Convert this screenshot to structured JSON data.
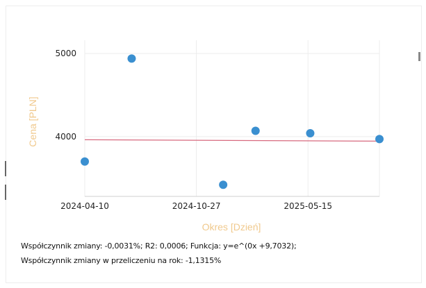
{
  "chart_data": {
    "type": "scatter",
    "xlabel": "Okres [Dzień]",
    "ylabel": "Cena [PLN]",
    "x_ticks": [
      "2024-04-10",
      "2024-10-27",
      "2025-05-15"
    ],
    "y_ticks": [
      4000,
      5000
    ],
    "x_range": [
      "2024-04-10",
      "2025-09-20"
    ],
    "y_range": [
      3280,
      5160
    ],
    "points": [
      {
        "x": "2024-04-10",
        "y": 3700
      },
      {
        "x": "2024-07-03",
        "y": 4940
      },
      {
        "x": "2024-12-14",
        "y": 3420
      },
      {
        "x": "2025-02-10",
        "y": 4070
      },
      {
        "x": "2025-05-19",
        "y": 4040
      },
      {
        "x": "2025-09-20",
        "y": 3970
      }
    ],
    "trendline": {
      "color": "#d7697e",
      "y_start": 3962,
      "y_end": 3945
    },
    "point_color": "#3a8fd0",
    "grid": true,
    "legend": "none"
  },
  "stats": {
    "line1": "Współczynnik zmiany: -0,0031%; R2: 0,0006; Funkcja: y=e^(0x +9,7032);",
    "line2": "Współczynnik zmiany w przeliczeniu na rok: -1,1315%"
  }
}
